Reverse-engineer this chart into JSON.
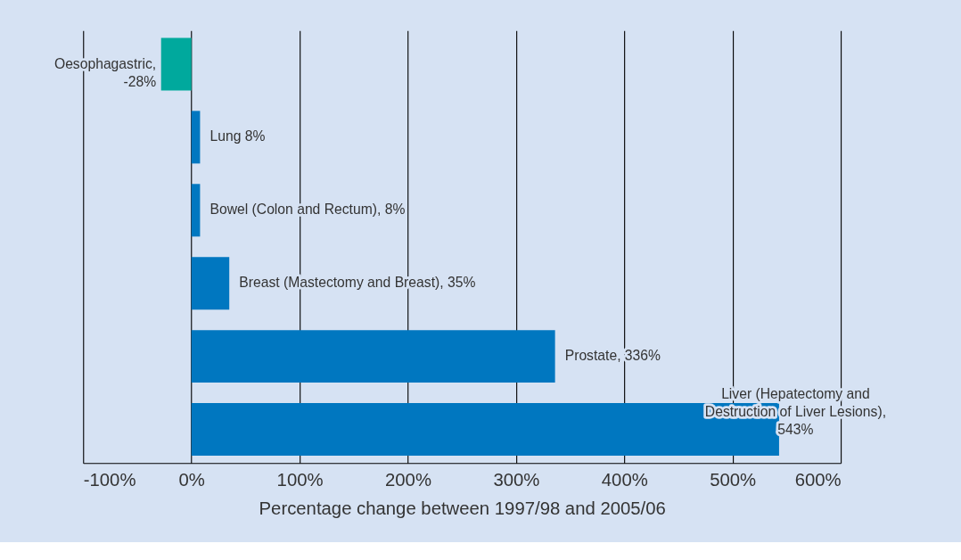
{
  "chart_data": {
    "type": "bar",
    "orientation": "horizontal",
    "categories": [
      null,
      null,
      null,
      null,
      null,
      null
    ],
    "values": [
      -28,
      8,
      8,
      35,
      336,
      543
    ],
    "colors": [
      "#00a99d",
      "#0077c0",
      "#0077c0",
      "#0077c0",
      "#0077c0",
      "#0077c0"
    ],
    "value_labels": [
      "Oesophagastric,\n-28%",
      "Lung 8%",
      "Bowel (Colon and Rectum), 8%",
      "Breast (Mastectomy and Breast), 35%",
      "Prostate, 336%",
      "Liver (Hepatectomy and\nDestruction of Liver Lesions),\n543%"
    ],
    "xlim": [
      -100,
      600
    ],
    "xticks": [
      {
        "value": -100,
        "label": "-100%"
      },
      {
        "value": 0,
        "label": "0%"
      },
      {
        "value": 100,
        "label": "100%"
      },
      {
        "value": 200,
        "label": "200%"
      },
      {
        "value": 300,
        "label": "300%"
      },
      {
        "value": 400,
        "label": "400%"
      },
      {
        "value": 500,
        "label": "500%"
      },
      {
        "value": 600,
        "label": "600%"
      }
    ],
    "xlabel": "Percentage change between 1997/98 and 2005/06",
    "grid": "x"
  }
}
